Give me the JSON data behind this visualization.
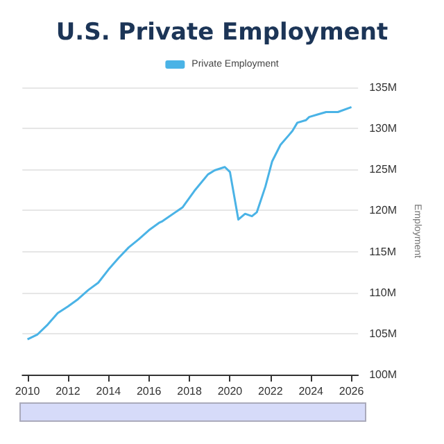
{
  "chart_data": {
    "type": "line",
    "title": "U.S. Private Employment",
    "ylabel": "Employment",
    "x": [
      "2010-01",
      "2010-07",
      "2011-01",
      "2011-07",
      "2012-01",
      "2012-07",
      "2013-01",
      "2013-07",
      "2014-01",
      "2014-07",
      "2015-01",
      "2015-07",
      "2016-01",
      "2016-07",
      "2016-09",
      "2017-09",
      "2018-04",
      "2018-12",
      "2019-04",
      "2019-10",
      "2020-01",
      "2020-06",
      "2020-10",
      "2021-02",
      "2021-05",
      "2021-10",
      "2022-02",
      "2022-07",
      "2022-12",
      "2023-02",
      "2023-05",
      "2023-10",
      "2023-12",
      "2024-05",
      "2024-10",
      "2025-05",
      "2026-01"
    ],
    "series": [
      {
        "name": "Private Employment",
        "color": "#4ab3e6",
        "values": [
          104.3,
          104.9,
          106.1,
          107.5,
          108.3,
          109.2,
          110.3,
          111.2,
          112.8,
          114.2,
          115.5,
          116.5,
          117.6,
          118.5,
          118.7,
          120.4,
          122.4,
          124.4,
          124.9,
          125.3,
          124.7,
          118.9,
          119.6,
          119.3,
          119.8,
          122.9,
          126.0,
          128.0,
          129.2,
          129.7,
          130.7,
          131.0,
          131.4,
          131.7,
          132.0,
          132.0,
          132.6
        ]
      }
    ],
    "xlim": [
      "2009-10",
      "2026-05"
    ],
    "xticks": [
      "2010",
      "2012",
      "2014",
      "2016",
      "2018",
      "2020",
      "2022",
      "2024",
      "2026"
    ],
    "ylim": [
      100,
      135
    ],
    "yticks": [
      {
        "value": 100,
        "label": "100M"
      },
      {
        "value": 105,
        "label": "105M"
      },
      {
        "value": 110,
        "label": "110M"
      },
      {
        "value": 115,
        "label": "115M"
      },
      {
        "value": 120,
        "label": "120M"
      },
      {
        "value": 125,
        "label": "125M"
      },
      {
        "value": 130,
        "label": "130M"
      },
      {
        "value": 135,
        "label": "135M"
      }
    ],
    "grid": "y",
    "legend": "top",
    "marker": "none",
    "line_style": "solid"
  }
}
